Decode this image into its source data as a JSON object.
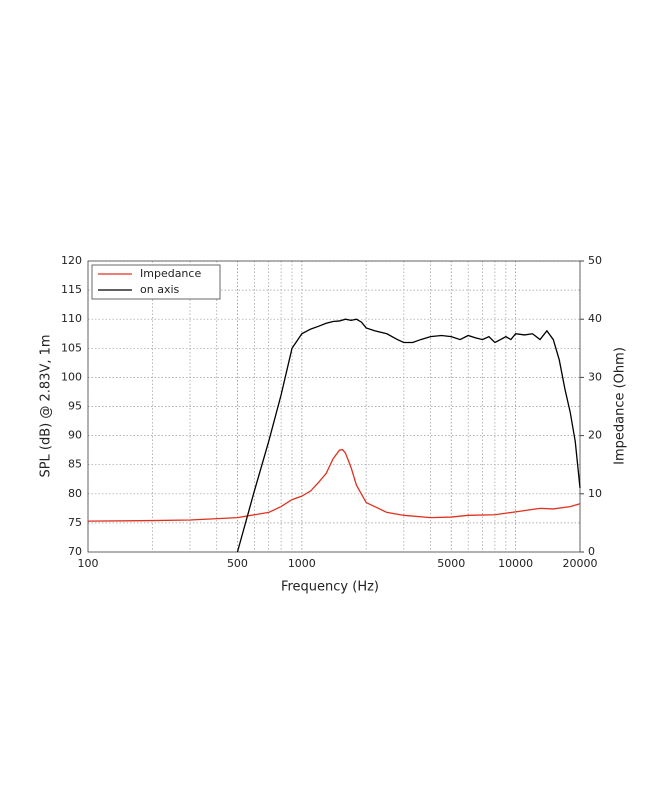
{
  "chart_data": {
    "type": "line",
    "xlabel": "Frequency (Hz)",
    "ylabel": "SPL (dB) @ 2.83V, 1m",
    "y2label": "Impedance (Ohm)",
    "xscale": "log",
    "xlim": [
      100,
      20000
    ],
    "xticks": [
      100,
      500,
      1000,
      5000,
      10000,
      20000
    ],
    "ylim": [
      70,
      120
    ],
    "yticks": [
      70,
      75,
      80,
      85,
      90,
      95,
      100,
      105,
      110,
      115,
      120
    ],
    "y2lim": [
      0,
      50
    ],
    "y2ticks": [
      0,
      10,
      20,
      30,
      40,
      50
    ],
    "grid": true,
    "legend": "upper left",
    "series": [
      {
        "name": "Impedance",
        "color": "#e0301e",
        "axis": "y2",
        "x": [
          100,
          200,
          300,
          500,
          700,
          800,
          900,
          1000,
          1100,
          1200,
          1300,
          1400,
          1500,
          1550,
          1600,
          1700,
          1800,
          2000,
          2500,
          3000,
          4000,
          5000,
          6000,
          8000,
          10000,
          13000,
          15000,
          18000,
          20000
        ],
        "values": [
          5.3,
          5.4,
          5.5,
          5.9,
          6.8,
          7.8,
          9.0,
          9.6,
          10.5,
          12,
          13.5,
          16,
          17.5,
          17.6,
          17,
          14.5,
          11.5,
          8.5,
          6.8,
          6.3,
          5.9,
          6.0,
          6.3,
          6.4,
          6.9,
          7.5,
          7.4,
          7.8,
          8.3
        ]
      },
      {
        "name": "on axis",
        "color": "#000000",
        "x": [
          500,
          600,
          700,
          800,
          900,
          1000,
          1100,
          1200,
          1300,
          1400,
          1500,
          1600,
          1700,
          1800,
          1900,
          2000,
          2200,
          2500,
          2800,
          3000,
          3300,
          3600,
          4000,
          4500,
          5000,
          5500,
          6000,
          6500,
          7000,
          7500,
          8000,
          8500,
          9000,
          9500,
          10000,
          11000,
          12000,
          13000,
          14000,
          15000,
          16000,
          17000,
          18000,
          19000,
          20000
        ],
        "values": [
          70,
          80.5,
          89,
          97,
          105,
          107.5,
          108.3,
          108.8,
          109.3,
          109.6,
          109.7,
          110,
          109.8,
          110,
          109.5,
          108.5,
          108,
          107.5,
          106.5,
          106,
          106,
          106.5,
          107,
          107.2,
          107,
          106.5,
          107.2,
          106.8,
          106.5,
          107,
          106,
          106.5,
          107,
          106.5,
          107.5,
          107.3,
          107.5,
          106.5,
          108,
          106.5,
          103,
          98,
          94,
          89,
          81
        ]
      }
    ]
  }
}
